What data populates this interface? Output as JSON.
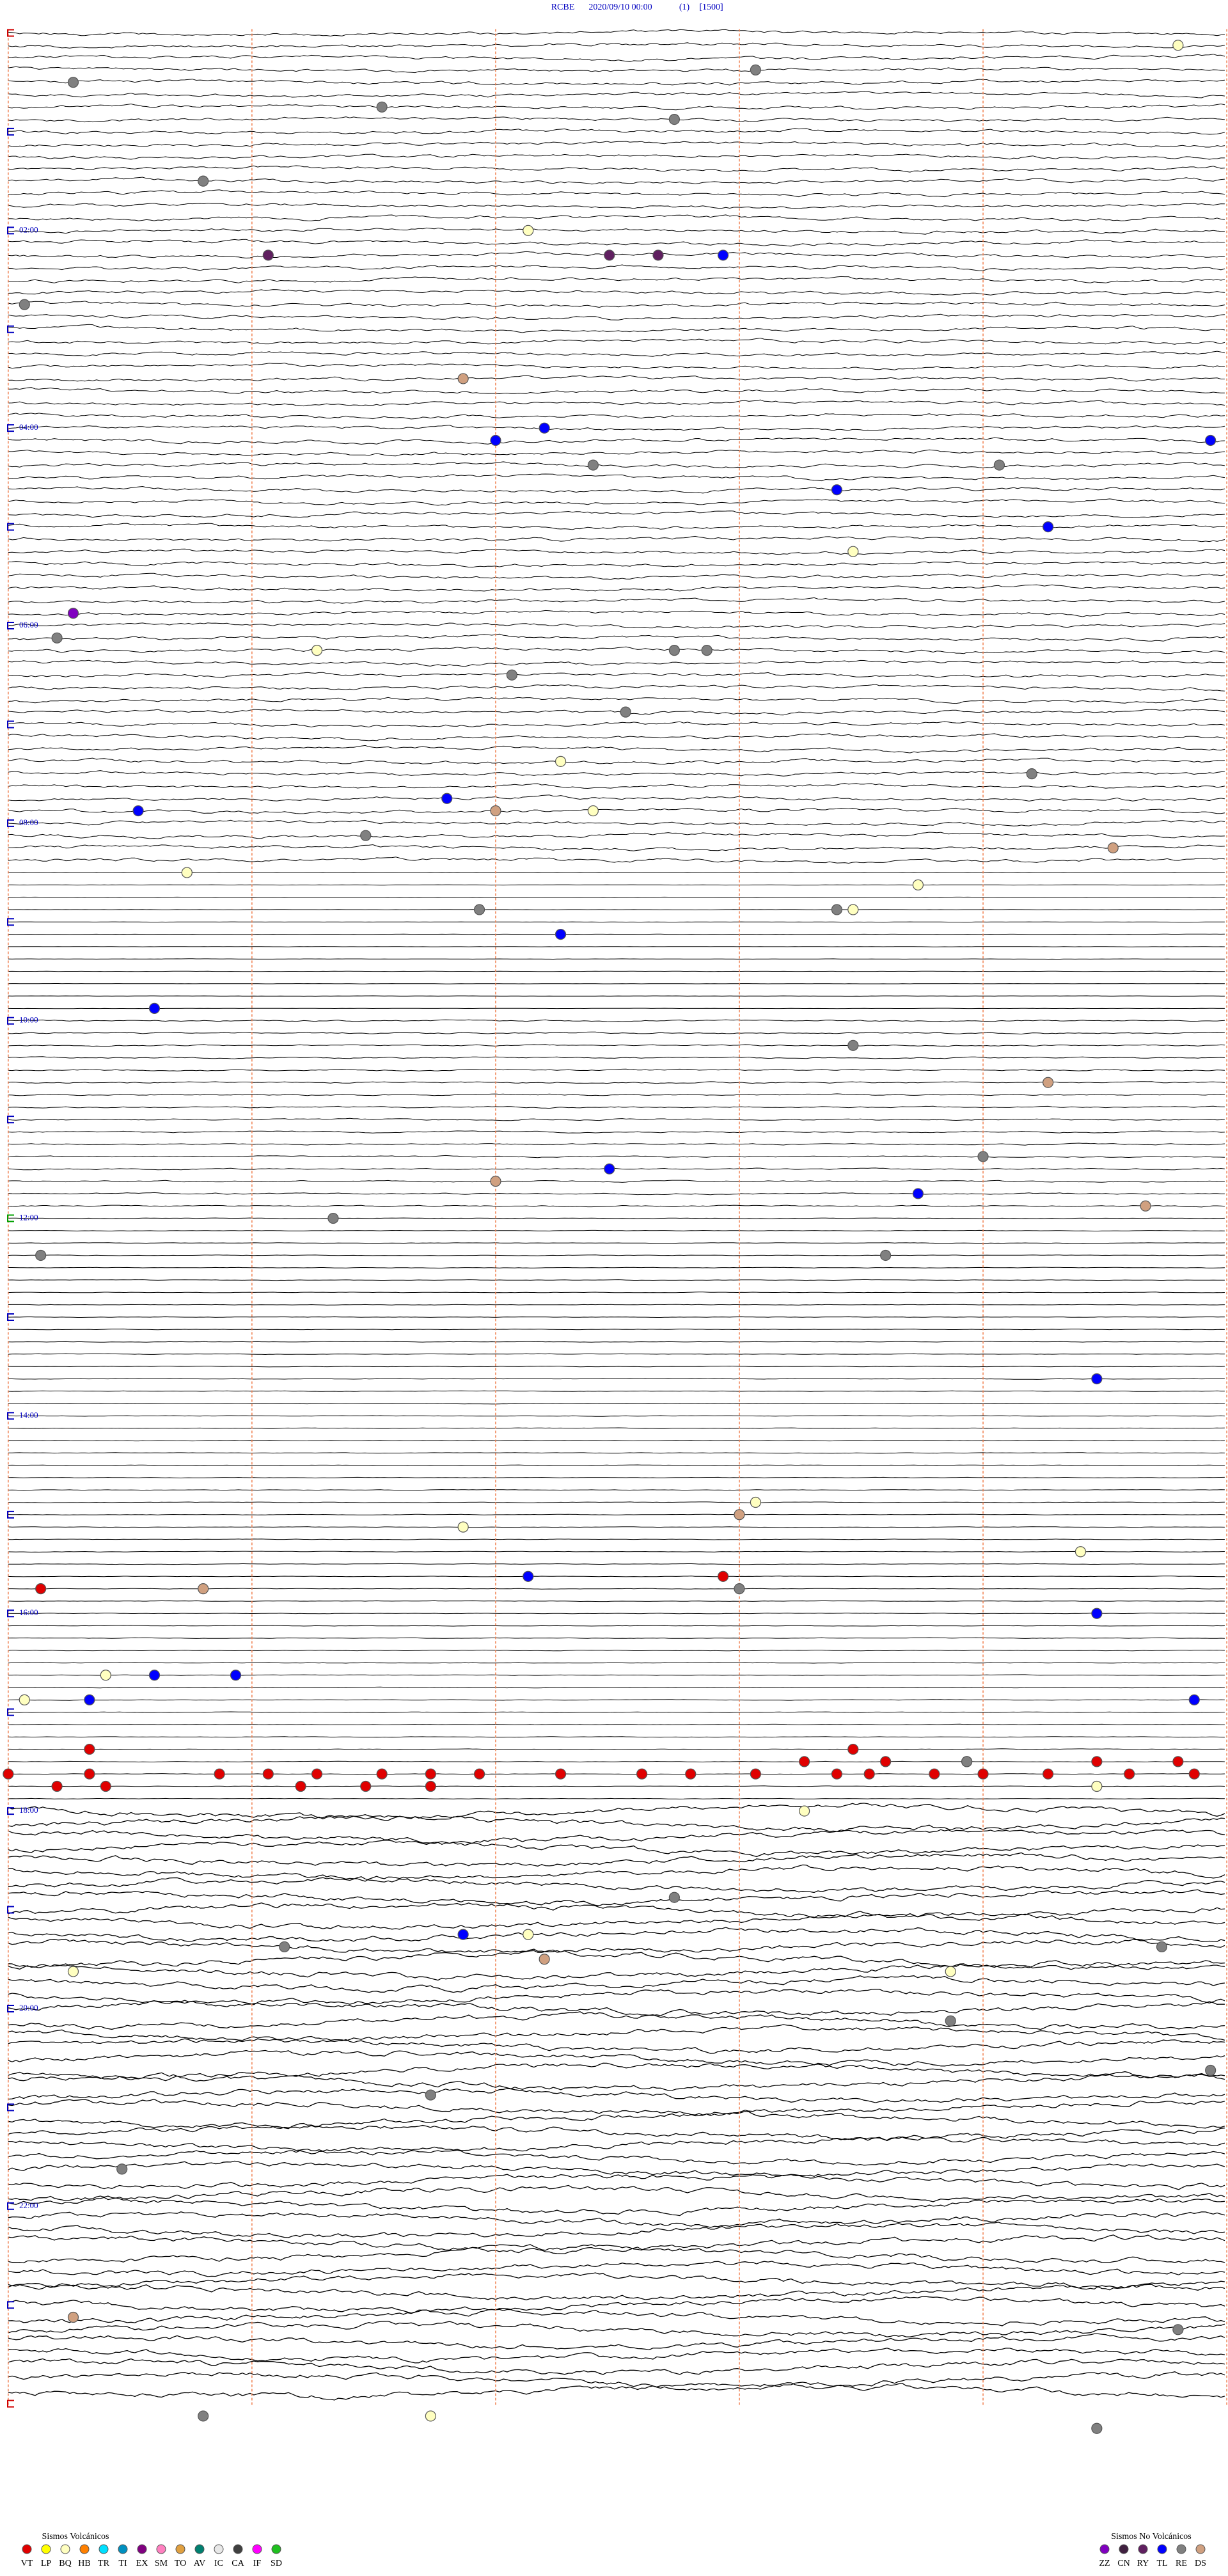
{
  "header": {
    "station": "RCBE",
    "datetime": "2020/09/10 00:00",
    "count": "(1)",
    "scale": "[1500]"
  },
  "hour_labels": [
    "02:00",
    "04:00",
    "06:00",
    "08:00",
    "10:00",
    "12:00",
    "14:00",
    "16:00",
    "18:00",
    "20:00",
    "22:00"
  ],
  "legend_volcanic": {
    "title": "Sismos Volcánicos",
    "items": [
      {
        "code": "VT",
        "color": "#e00000"
      },
      {
        "code": "LP",
        "color": "#ffff00"
      },
      {
        "code": "BQ",
        "color": "#ffffc0"
      },
      {
        "code": "HB",
        "color": "#ff8000"
      },
      {
        "code": "TR",
        "color": "#00e0ff"
      },
      {
        "code": "TI",
        "color": "#0090c0"
      },
      {
        "code": "EX",
        "color": "#800080"
      },
      {
        "code": "SM",
        "color": "#ff80c0"
      },
      {
        "code": "TO",
        "color": "#e0a040"
      },
      {
        "code": "AV",
        "color": "#008070"
      },
      {
        "code": "IC",
        "color": "#e8e8e8"
      },
      {
        "code": "CA",
        "color": "#404040"
      },
      {
        "code": "IF",
        "color": "#ff00ff"
      },
      {
        "code": "SD",
        "color": "#20c020"
      }
    ]
  },
  "legend_non_volcanic": {
    "title": "Sismos No Volcánicos",
    "items": [
      {
        "code": "ZZ",
        "color": "#8000c0"
      },
      {
        "code": "CN",
        "color": "#402040"
      },
      {
        "code": "RY",
        "color": "#602060"
      },
      {
        "code": "TL",
        "color": "#0000ff"
      },
      {
        "code": "RE",
        "color": "#808080"
      },
      {
        "code": "DS",
        "color": "#d0a080"
      }
    ]
  },
  "events": [
    {
      "type": "BQ",
      "time": 14.7
    },
    {
      "type": "RE",
      "time": 30.4
    },
    {
      "type": "RE",
      "time": 27.1
    },
    {
      "type": "RE",
      "time": 47.3
    },
    {
      "type": "RE",
      "time": 56.6
    },
    {
      "type": "RE",
      "time": 91.2
    },
    {
      "type": "BQ",
      "time": 123.2
    },
    {
      "type": "RY",
      "time": 136.6
    },
    {
      "type": "RY",
      "time": 138.7
    },
    {
      "type": "RY",
      "time": 139.0
    },
    {
      "type": "TL",
      "time": 139.4
    },
    {
      "type": "RE",
      "time": 165.1
    },
    {
      "type": "DS",
      "time": 212.8
    },
    {
      "type": "TL",
      "time": 250.5
    },
    {
      "type": "TL",
      "time": 243.3
    },
    {
      "type": "TL",
      "time": 254.9
    },
    {
      "type": "RE",
      "time": 266.1
    },
    {
      "type": "RE",
      "time": 268.6
    },
    {
      "type": "TL",
      "time": 282.6
    },
    {
      "type": "TL",
      "time": 306.4
    },
    {
      "type": "BQ",
      "time": 320.2
    },
    {
      "type": "ZZ",
      "time": 352.9
    },
    {
      "type": "RE",
      "time": 367.8
    },
    {
      "type": "BQ",
      "time": 376.9
    },
    {
      "type": "RE",
      "time": 379.1
    },
    {
      "type": "RE",
      "time": 379.3
    },
    {
      "type": "RE",
      "time": 393.1
    },
    {
      "type": "RE",
      "time": 416.3
    },
    {
      "type": "BQ",
      "time": 445.9
    },
    {
      "type": "RE",
      "time": 456.3
    },
    {
      "type": "TL",
      "time": 473.3
    },
    {
      "type": "TL",
      "time": 467.7
    },
    {
      "type": "DS",
      "time": 475.5
    },
    {
      "type": "BQ",
      "time": 476.1
    },
    {
      "type": "RE",
      "time": 489.7
    },
    {
      "type": "DS",
      "time": 501.8
    },
    {
      "type": "BQ",
      "time": 511.1
    },
    {
      "type": "BQ",
      "time": 523.1
    },
    {
      "type": "RE",
      "time": 535.4
    },
    {
      "type": "RE",
      "time": 537.6
    },
    {
      "type": "BQ",
      "time": 537.7
    },
    {
      "type": "TL",
      "time": 550.9
    },
    {
      "type": "TL",
      "time": 593.4
    },
    {
      "type": "RE",
      "time": 620.2
    },
    {
      "type": "DS",
      "time": 643.9
    },
    {
      "type": "TL",
      "time": 693.7
    },
    {
      "type": "RE",
      "time": 688.5
    },
    {
      "type": "DS",
      "time": 700.5
    },
    {
      "type": "TL",
      "time": 710.6
    },
    {
      "type": "RE",
      "time": 722.0
    },
    {
      "type": "DS",
      "time": 719.5
    },
    {
      "type": "RE",
      "time": 742.7
    },
    {
      "type": "RE",
      "time": 747.9
    },
    {
      "type": "TL",
      "time": 824.2
    },
    {
      "type": "BQ",
      "time": 910.3
    },
    {
      "type": "BQ",
      "time": 897.1
    },
    {
      "type": "DS",
      "time": 904.5
    },
    {
      "type": "BQ",
      "time": 929.1
    },
    {
      "type": "TL",
      "time": 940.7
    },
    {
      "type": "VT",
      "time": 941.9
    },
    {
      "type": "VT",
      "time": 945.2
    },
    {
      "type": "DS",
      "time": 946.2
    },
    {
      "type": "RE",
      "time": 949.5
    },
    {
      "type": "TL",
      "time": 966.7
    },
    {
      "type": "TL",
      "time": 998.4
    },
    {
      "type": "TL",
      "time": 998.9
    },
    {
      "type": "BQ",
      "time": 998.1
    },
    {
      "type": "TL",
      "time": 1019.8
    },
    {
      "type": "BQ",
      "time": 1012.6
    },
    {
      "type": "TL",
      "time": 1013.0
    },
    {
      "type": "VT",
      "time": 1057.5
    },
    {
      "type": "VT",
      "time": 1058.0
    },
    {
      "type": "VT",
      "time": 1058.8
    },
    {
      "type": "VT",
      "time": 1059.1
    },
    {
      "type": "VT",
      "time": 1059.4
    },
    {
      "type": "VT",
      "time": 1059.8
    },
    {
      "type": "VT",
      "time": 1060.1
    },
    {
      "type": "VT",
      "time": 1060.4
    },
    {
      "type": "VT",
      "time": 1060.9
    },
    {
      "type": "VT",
      "time": 1061.4
    },
    {
      "type": "VT",
      "time": 1061.7
    },
    {
      "type": "VT",
      "time": 1062.1
    },
    {
      "type": "VT",
      "time": 1062.6
    },
    {
      "type": "VT",
      "time": 1062.8
    },
    {
      "type": "VT",
      "time": 1063.2
    },
    {
      "type": "VT",
      "time": 1063.5
    },
    {
      "type": "VT",
      "time": 1063.9
    },
    {
      "type": "VT",
      "time": 1064.4
    },
    {
      "type": "VT",
      "time": 1064.8
    },
    {
      "type": "VT",
      "time": 1065.3
    },
    {
      "type": "VT",
      "time": 1065.6
    },
    {
      "type": "VT",
      "time": 1066.8
    },
    {
      "type": "VT",
      "time": 1067.2
    },
    {
      "type": "VT",
      "time": 1067.6
    },
    {
      "type": "VT",
      "time": 1054.9
    },
    {
      "type": "VT",
      "time": 1055.4
    },
    {
      "type": "VT",
      "time": 1055.9
    },
    {
      "type": "VT",
      "time": 1056.7
    },
    {
      "type": "VT",
      "time": 1057.2
    },
    {
      "type": "VT",
      "time": 1043.0
    },
    {
      "type": "VT",
      "time": 1047.7
    },
    {
      "type": "RE",
      "time": 1055.9
    },
    {
      "type": "BQ",
      "time": 1071.7
    },
    {
      "type": "BQ",
      "time": 1084.9
    },
    {
      "type": "RE",
      "time": 1136.6
    },
    {
      "type": "TL",
      "time": 1157.8
    },
    {
      "type": "RE",
      "time": 1164.2
    },
    {
      "type": "BQ",
      "time": 1158.2
    },
    {
      "type": "DS",
      "time": 1173.3
    },
    {
      "type": "RE",
      "time": 1169.6
    },
    {
      "type": "BQ",
      "time": 1177.9
    },
    {
      "type": "BQ",
      "time": 1183.3
    },
    {
      "type": "RE",
      "time": 1213.3
    },
    {
      "type": "RE",
      "time": 1244.9
    },
    {
      "type": "RE",
      "time": 1255.1
    },
    {
      "type": "RE",
      "time": 1298.2
    },
    {
      "type": "DS",
      "time": 1387.9
    },
    {
      "type": "RE",
      "time": 1402.2
    },
    {
      "type": "RE",
      "time": 1448.7
    },
    {
      "type": "BQ",
      "time": 1450.1
    },
    {
      "type": "RE",
      "time": 1461.7
    }
  ]
}
